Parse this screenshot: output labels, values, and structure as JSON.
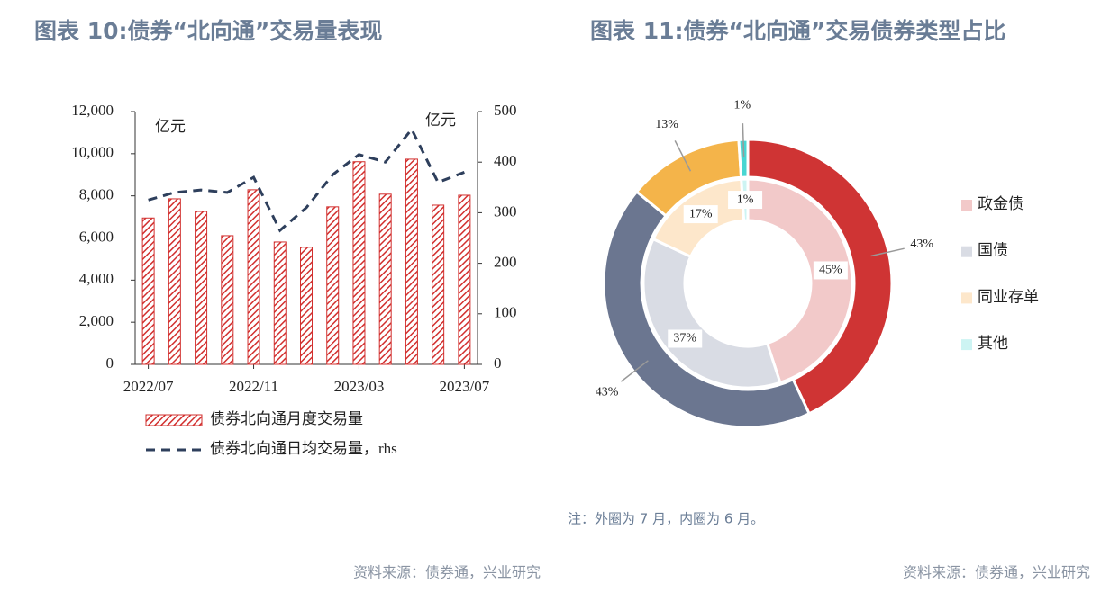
{
  "chart_data": [
    {
      "type": "bar",
      "title": "图表 10:债券“北向通”交易量表现",
      "categories": [
        "2022/07",
        null,
        null,
        null,
        "2022/11",
        null,
        null,
        null,
        "2023/03",
        null,
        null,
        null,
        "2023/07"
      ],
      "series": [
        {
          "name": "债券北向通月度交易量",
          "type": "bar",
          "color": "#d2302f",
          "values": [
            6950,
            7860,
            7260,
            6110,
            8290,
            5810,
            5560,
            7480,
            9620,
            8080,
            9740,
            7560,
            8030
          ]
        },
        {
          "name": "债券北向通日均交易量，rhs",
          "type": "line",
          "color": "#2e3f5c",
          "axis": "y2",
          "values": [
            325,
            340,
            345,
            340,
            370,
            265,
            310,
            375,
            415,
            400,
            465,
            360,
            380
          ]
        }
      ],
      "ylim": [
        0,
        12000
      ],
      "yticks": [
        0,
        {
          "value": 2000,
          "label": "2,000"
        },
        {
          "value": 4000,
          "label": "4,000"
        },
        {
          "value": 6000,
          "label": "6,000"
        },
        {
          "value": 8000,
          "label": "8,000"
        },
        {
          "value": 10000,
          "label": "10,000"
        },
        {
          "value": 12000,
          "label": "12,000"
        }
      ],
      "y2lim": [
        0,
        500
      ],
      "y2ticks": [
        0,
        100,
        200,
        300,
        400,
        500
      ],
      "annotations": [
        "亿元",
        "亿元"
      ],
      "source": "资料来源：债券通，兴业研究"
    },
    {
      "type": "pie",
      "title": "图表 11:债券“北向通”交易债券类型占比",
      "categories": [
        "政金债",
        "国债",
        "同业存单",
        "其他"
      ],
      "rings": [
        {
          "values": [
            43,
            43,
            13,
            1
          ],
          "value_labels": [
            "43%",
            "43%",
            "13%",
            "1%"
          ],
          "colors": [
            "#cf3434",
            "#6b7690",
            "#f4b44a",
            "#48d6d2"
          ]
        },
        {
          "values": [
            45,
            37,
            17,
            1
          ],
          "value_labels": [
            "45%",
            "37%",
            "17%",
            "1%"
          ],
          "colors": [
            "#f2c9c9",
            "#d9dce4",
            "#fde7cb",
            "#cdf4f3"
          ]
        }
      ],
      "note": "注：外圈为 7 月，内圈为 6 月。",
      "source": "资料来源：债券通，兴业研究"
    }
  ]
}
